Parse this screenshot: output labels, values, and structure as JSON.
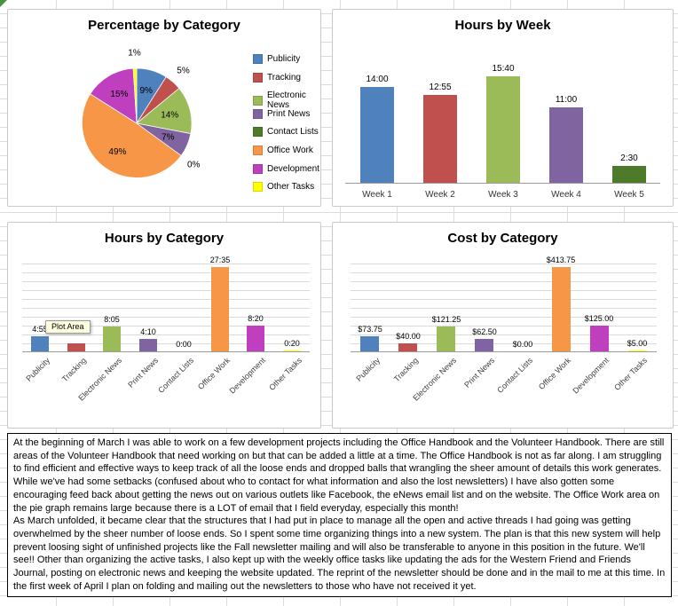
{
  "sheet": {
    "grid_color": "#dcdcdc",
    "corner_marker_color": "#43963c"
  },
  "chart_data": [
    {
      "type": "pie",
      "title": "Percentage by Category",
      "categories": [
        "Publicity",
        "Tracking",
        "Electronic News",
        "Print News",
        "Contact Lists",
        "Office Work",
        "Development",
        "Other Tasks"
      ],
      "values": [
        9,
        5,
        14,
        7,
        0,
        49,
        15,
        1
      ],
      "labels": [
        "9%",
        "5%",
        "14%",
        "7%",
        "0%",
        "49%",
        "15%",
        "1%"
      ],
      "colors": [
        "#4F81BD",
        "#C0504D",
        "#9BBB59",
        "#8064A2",
        "#4E7B2A",
        "#F79646",
        "#BF3FBF",
        "#FFFF00"
      ],
      "legend_position": "right"
    },
    {
      "type": "bar",
      "title": "Hours by Week",
      "categories": [
        "Week 1",
        "Week 2",
        "Week 3",
        "Week 4",
        "Week 5"
      ],
      "values": [
        14.0,
        12.92,
        15.67,
        11.0,
        2.5
      ],
      "labels": [
        "14:00",
        "12:55",
        "15:40",
        "11:00",
        "2:30"
      ],
      "colors": [
        "#4F81BD",
        "#C0504D",
        "#9BBB59",
        "#8064A2",
        "#4E7B2A"
      ],
      "ylim": [
        0,
        19
      ],
      "grid": false
    },
    {
      "type": "bar",
      "title": "Hours by Category",
      "categories": [
        "Publicity",
        "Tracking",
        "Electronic News",
        "Print News",
        "Contact Lists",
        "Office Work",
        "Development",
        "Other Tasks"
      ],
      "values": [
        4.92,
        2.67,
        8.08,
        4.17,
        0,
        27.58,
        8.33,
        0.33
      ],
      "labels": [
        "4:55",
        "",
        "8:05",
        "4:10",
        "0:00",
        "27:35",
        "8:20",
        "0:20"
      ],
      "colors": [
        "#4F81BD",
        "#C0504D",
        "#9BBB59",
        "#8064A2",
        "#4E7B2A",
        "#F79646",
        "#BF3FBF",
        "#FFFF00"
      ],
      "ylim": [
        0,
        29
      ],
      "grid": true,
      "tooltip": "Plot Area"
    },
    {
      "type": "bar",
      "title": "Cost by Category",
      "categories": [
        "Publicity",
        "Tracking",
        "Electronic News",
        "Print News",
        "Contact Lists",
        "Office Work",
        "Development",
        "Other Tasks"
      ],
      "values": [
        73.75,
        40.0,
        121.25,
        62.5,
        0.0,
        413.75,
        125.0,
        5.0
      ],
      "labels": [
        "$73.75",
        "$40.00",
        "$121.25",
        "$62.50",
        "$0.00",
        "$413.75",
        "$125.00",
        "$5.00"
      ],
      "colors": [
        "#4F81BD",
        "#C0504D",
        "#9BBB59",
        "#8064A2",
        "#4E7B2A",
        "#F79646",
        "#BF3FBF",
        "#FFFF00"
      ],
      "ylim": [
        0,
        436
      ],
      "grid": true
    }
  ],
  "report": {
    "p1": "At the beginning of March I was able to work on a few development projects including the Office Handbook and the Volunteer Handbook. There are still areas of the Volunteer Handbook that need working on but that can be added a little at a time. The Office Handbook is not as far along. I am struggling to find efficient and effective ways to keep track of all the loose ends and dropped balls that wrangling the sheer amount of details this work generates. While we've had some setbacks (confused about who to contact for what information and also the lost newsletters) I have also gotten some encouraging feed back about getting the news out on various outlets like Facebook, the eNews email list and on the website. The Office Work area on the pie graph remains large because there is a LOT of email that I field everyday, especially this month!",
    "p2": "As March unfolded, it became clear that the structures that I had put in place to manage all the open and active threads I had going was getting overwhelmed by the sheer number of loose ends. So I spent some time organizing things into a new system. The plan is that this new system will help prevent loosing sight of unfinished projects like the Fall newsletter mailing and will also be transferable to anyone in this position in the future. We'll see!! Other than organizing the active tasks, I also kept up with the weekly office tasks like updating the ads for the Western Friend and Friends Journal, posting on electronic news and keeping the website updated. The reprint of the newsletter should be done and in the mail to me at this time. In the first week of April I plan on folding and mailing out the newsletters to those who have not received it yet."
  }
}
